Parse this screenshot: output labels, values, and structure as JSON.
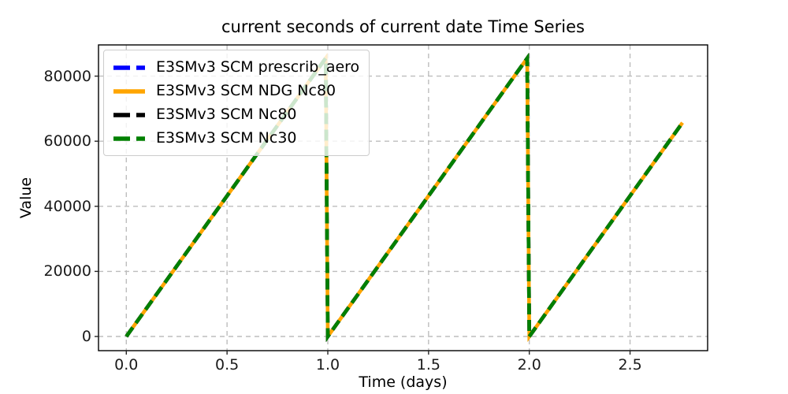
{
  "figure": {
    "title": "current seconds of current date Time Series"
  },
  "axes": {
    "xlabel": "Time (days)",
    "ylabel": "Value",
    "x_ticks": [
      {
        "value": 0.0,
        "label": "0.0"
      },
      {
        "value": 0.5,
        "label": "0.5"
      },
      {
        "value": 1.0,
        "label": "1.0"
      },
      {
        "value": 1.5,
        "label": "1.5"
      },
      {
        "value": 2.0,
        "label": "2.0"
      },
      {
        "value": 2.5,
        "label": "2.5"
      }
    ],
    "y_ticks": [
      {
        "value": 0,
        "label": "0"
      },
      {
        "value": 20000,
        "label": "20000"
      },
      {
        "value": 40000,
        "label": "40000"
      },
      {
        "value": 60000,
        "label": "60000"
      },
      {
        "value": 80000,
        "label": "80000"
      }
    ]
  },
  "chart_data": {
    "type": "line",
    "title": "current seconds of current date Time Series",
    "xlabel": "Time (days)",
    "ylabel": "Value",
    "xlim": [
      -0.138,
      2.885
    ],
    "ylim": [
      -4360,
      89590
    ],
    "grid": true,
    "grid_style": "dashed",
    "legend_position": "upper left",
    "x": [
      0.0,
      0.9896,
      1.0,
      1.9896,
      2.0,
      2.7604
    ],
    "series": [
      {
        "name": "E3SMv3 SCM prescrib_aero",
        "color": "#0000ff",
        "linestyle": "dashed",
        "values": [
          0,
          85500,
          0,
          85500,
          0,
          65700
        ]
      },
      {
        "name": "E3SMv3 SCM NDG Nc80",
        "color": "#ffa500",
        "linestyle": "solid",
        "values": [
          0,
          85500,
          0,
          85500,
          0,
          65700
        ]
      },
      {
        "name": "E3SMv3 SCM Nc80",
        "color": "#000000",
        "linestyle": "dashed",
        "values": [
          0,
          85500,
          0,
          85500,
          0,
          65700
        ]
      },
      {
        "name": "E3SMv3 SCM Nc30",
        "color": "#008000",
        "linestyle": "dashed",
        "values": [
          0,
          85500,
          0,
          85500,
          0,
          65700
        ]
      }
    ],
    "colors": {
      "grid": "#bdbdbd",
      "spine": "#000000",
      "tick": "#262626"
    }
  }
}
